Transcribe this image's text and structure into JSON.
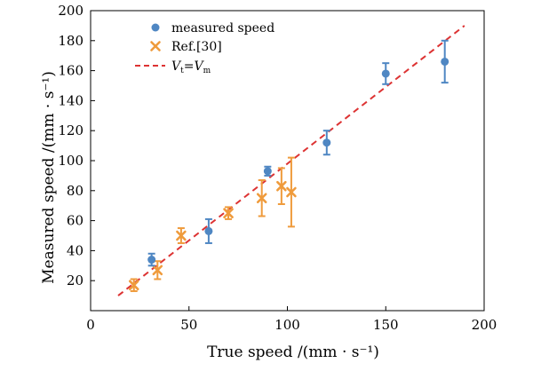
{
  "chart_data": {
    "type": "scatter",
    "title": "",
    "xlabel": "True speed /(mm · s⁻¹)",
    "ylabel": "Measured speed /(mm · s⁻¹)",
    "xlim": [
      0,
      200
    ],
    "ylim": [
      0,
      200
    ],
    "xticks": [
      0,
      50,
      100,
      150,
      200
    ],
    "yticks": [
      20,
      40,
      60,
      80,
      100,
      120,
      140,
      160,
      180,
      200
    ],
    "xtick_labels": [
      "0",
      "50",
      "100",
      "150",
      "200"
    ],
    "ytick_labels": [
      "20",
      "40",
      "60",
      "80",
      "100",
      "120",
      "140",
      "160",
      "180",
      "200"
    ],
    "grid": false,
    "legend_position": "top-left",
    "series": [
      {
        "name": "measured speed",
        "marker": "circle",
        "color": "#4f87c3",
        "points": [
          {
            "x": 31,
            "y": 34,
            "err": 4
          },
          {
            "x": 60,
            "y": 53,
            "err": 8
          },
          {
            "x": 90,
            "y": 93,
            "err": 3
          },
          {
            "x": 120,
            "y": 112,
            "err": 8
          },
          {
            "x": 150,
            "y": 158,
            "err": 7
          },
          {
            "x": 180,
            "y": 166,
            "err": 14
          }
        ]
      },
      {
        "name": "Ref.[30]",
        "marker": "x",
        "color": "#ef9b3c",
        "points": [
          {
            "x": 22,
            "y": 17,
            "err": 4
          },
          {
            "x": 34,
            "y": 27,
            "err": 6
          },
          {
            "x": 46,
            "y": 50,
            "err": 5
          },
          {
            "x": 70,
            "y": 65,
            "err": 4
          },
          {
            "x": 87,
            "y": 75,
            "err": 12
          },
          {
            "x": 97,
            "y": 83,
            "err": 12
          },
          {
            "x": 102,
            "y": 79,
            "err": 23
          }
        ]
      },
      {
        "name": "Vₜ=Vₘ",
        "legend_main": "V",
        "legend_sub1": "t",
        "legend_eq": "=V",
        "legend_sub2": "m",
        "type": "line",
        "style": "dashed",
        "color": "#dd3333",
        "x": [
          14,
          190
        ],
        "y": [
          10,
          190
        ]
      }
    ]
  }
}
